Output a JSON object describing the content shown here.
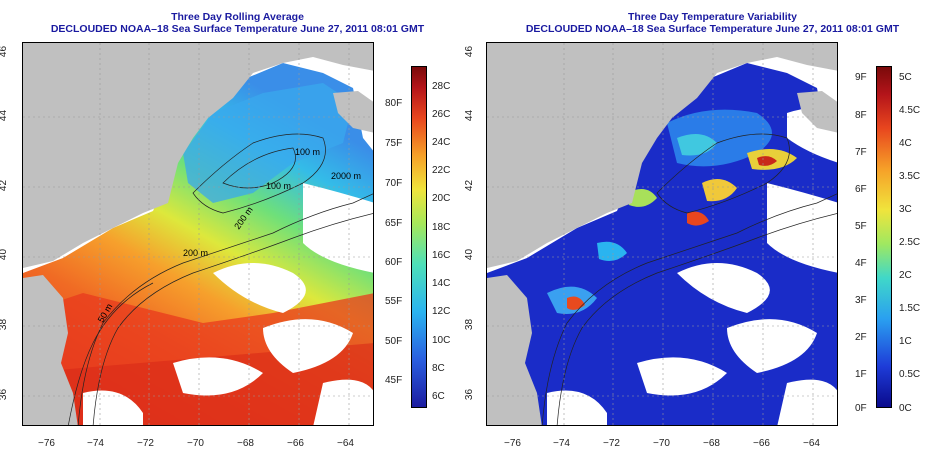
{
  "left_panel": {
    "title": "Three Day Rolling Average",
    "subtitle": "DECLOUDED NOAA–18 Sea Surface Temperature June 27, 2011 08:01 GMT",
    "colorbar_colors": [
      "#1c1ca0",
      "#2a5fe0",
      "#2ab4f0",
      "#4ee0b8",
      "#a6e85a",
      "#f0e43c",
      "#f6a028",
      "#e8461e",
      "#b4141a",
      "#7a0a0a"
    ],
    "c_ticks": [
      "28C",
      "26C",
      "24C",
      "22C",
      "20C",
      "18C",
      "16C",
      "14C",
      "12C",
      "10C",
      "8C",
      "6C"
    ],
    "f_ticks": [
      "80F",
      "75F",
      "70F",
      "65F",
      "60F",
      "55F",
      "50F",
      "45F"
    ],
    "contour_labels": [
      "100 m",
      "100 m",
      "2000 m",
      "200 m",
      "200 m",
      "50 m"
    ]
  },
  "right_panel": {
    "title": "Three Day Temperature Variability",
    "subtitle": "DECLOUDED NOAA–18 Sea Surface Temperature June 27, 2011 08:01 GMT",
    "colorbar_colors": [
      "#0a0a8c",
      "#1e3cd8",
      "#2aa0f0",
      "#40d8c8",
      "#a0e860",
      "#f0e43c",
      "#f6a028",
      "#e8461e",
      "#b4141a",
      "#7a0a0a"
    ],
    "f_ticks": [
      "9F",
      "8F",
      "7F",
      "6F",
      "5F",
      "4F",
      "3F",
      "2F",
      "1F",
      "0F"
    ],
    "c_ticks": [
      "5C",
      "4.5C",
      "4C",
      "3.5C",
      "3C",
      "2.5C",
      "2C",
      "1.5C",
      "1C",
      "0.5C",
      "0C"
    ]
  },
  "latitude_ticks": [
    "46",
    "44",
    "42",
    "40",
    "38",
    "36"
  ],
  "longitude_ticks": [
    "−76",
    "−74",
    "−72",
    "−70",
    "−68",
    "−66",
    "−64"
  ],
  "colors": {
    "land": "#c0c0c0",
    "title_blue": "#1a1aa0",
    "ocean_blank": "#ffffff"
  }
}
